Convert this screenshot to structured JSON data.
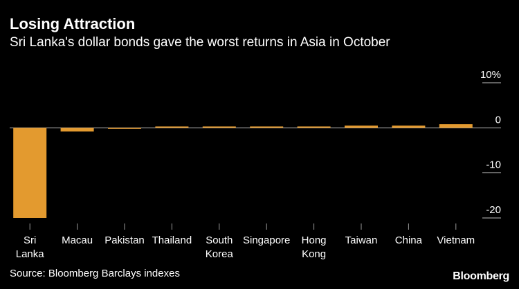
{
  "header": {
    "title": "Losing Attraction",
    "subtitle": "Sri Lanka's dollar bonds gave the worst returns in Asia in October"
  },
  "footer": {
    "source": "Source: Bloomberg Barclays indexes",
    "brand": "Bloomberg"
  },
  "colors": {
    "bar": "#E39A2F",
    "background": "#000000",
    "text": "#FFFFFF",
    "grid": "#BFBFBF",
    "tick": "#9A9A9A"
  },
  "chart_data": {
    "type": "bar",
    "categories": [
      [
        "Sri",
        "Lanka"
      ],
      [
        "Macau"
      ],
      [
        "Pakistan"
      ],
      [
        "Thailand"
      ],
      [
        "South",
        "Korea"
      ],
      [
        "Singapore"
      ],
      [
        "Hong",
        "Kong"
      ],
      [
        "Taiwan"
      ],
      [
        "China"
      ],
      [
        "Vietnam"
      ]
    ],
    "values": [
      -20.0,
      -0.8,
      -0.2,
      0.3,
      0.3,
      0.3,
      0.3,
      0.5,
      0.5,
      0.8
    ],
    "ylim": [
      -20,
      10
    ],
    "yticks": [
      {
        "value": 10,
        "label": "10%"
      },
      {
        "value": 0,
        "label": "0"
      },
      {
        "value": -10,
        "label": "-10"
      },
      {
        "value": -20,
        "label": "-20"
      }
    ],
    "title": "Losing Attraction",
    "subtitle": "Sri Lanka's dollar bonds gave the worst returns in Asia in October",
    "xlabel": "",
    "ylabel": "",
    "grid": false,
    "legend": "none"
  }
}
